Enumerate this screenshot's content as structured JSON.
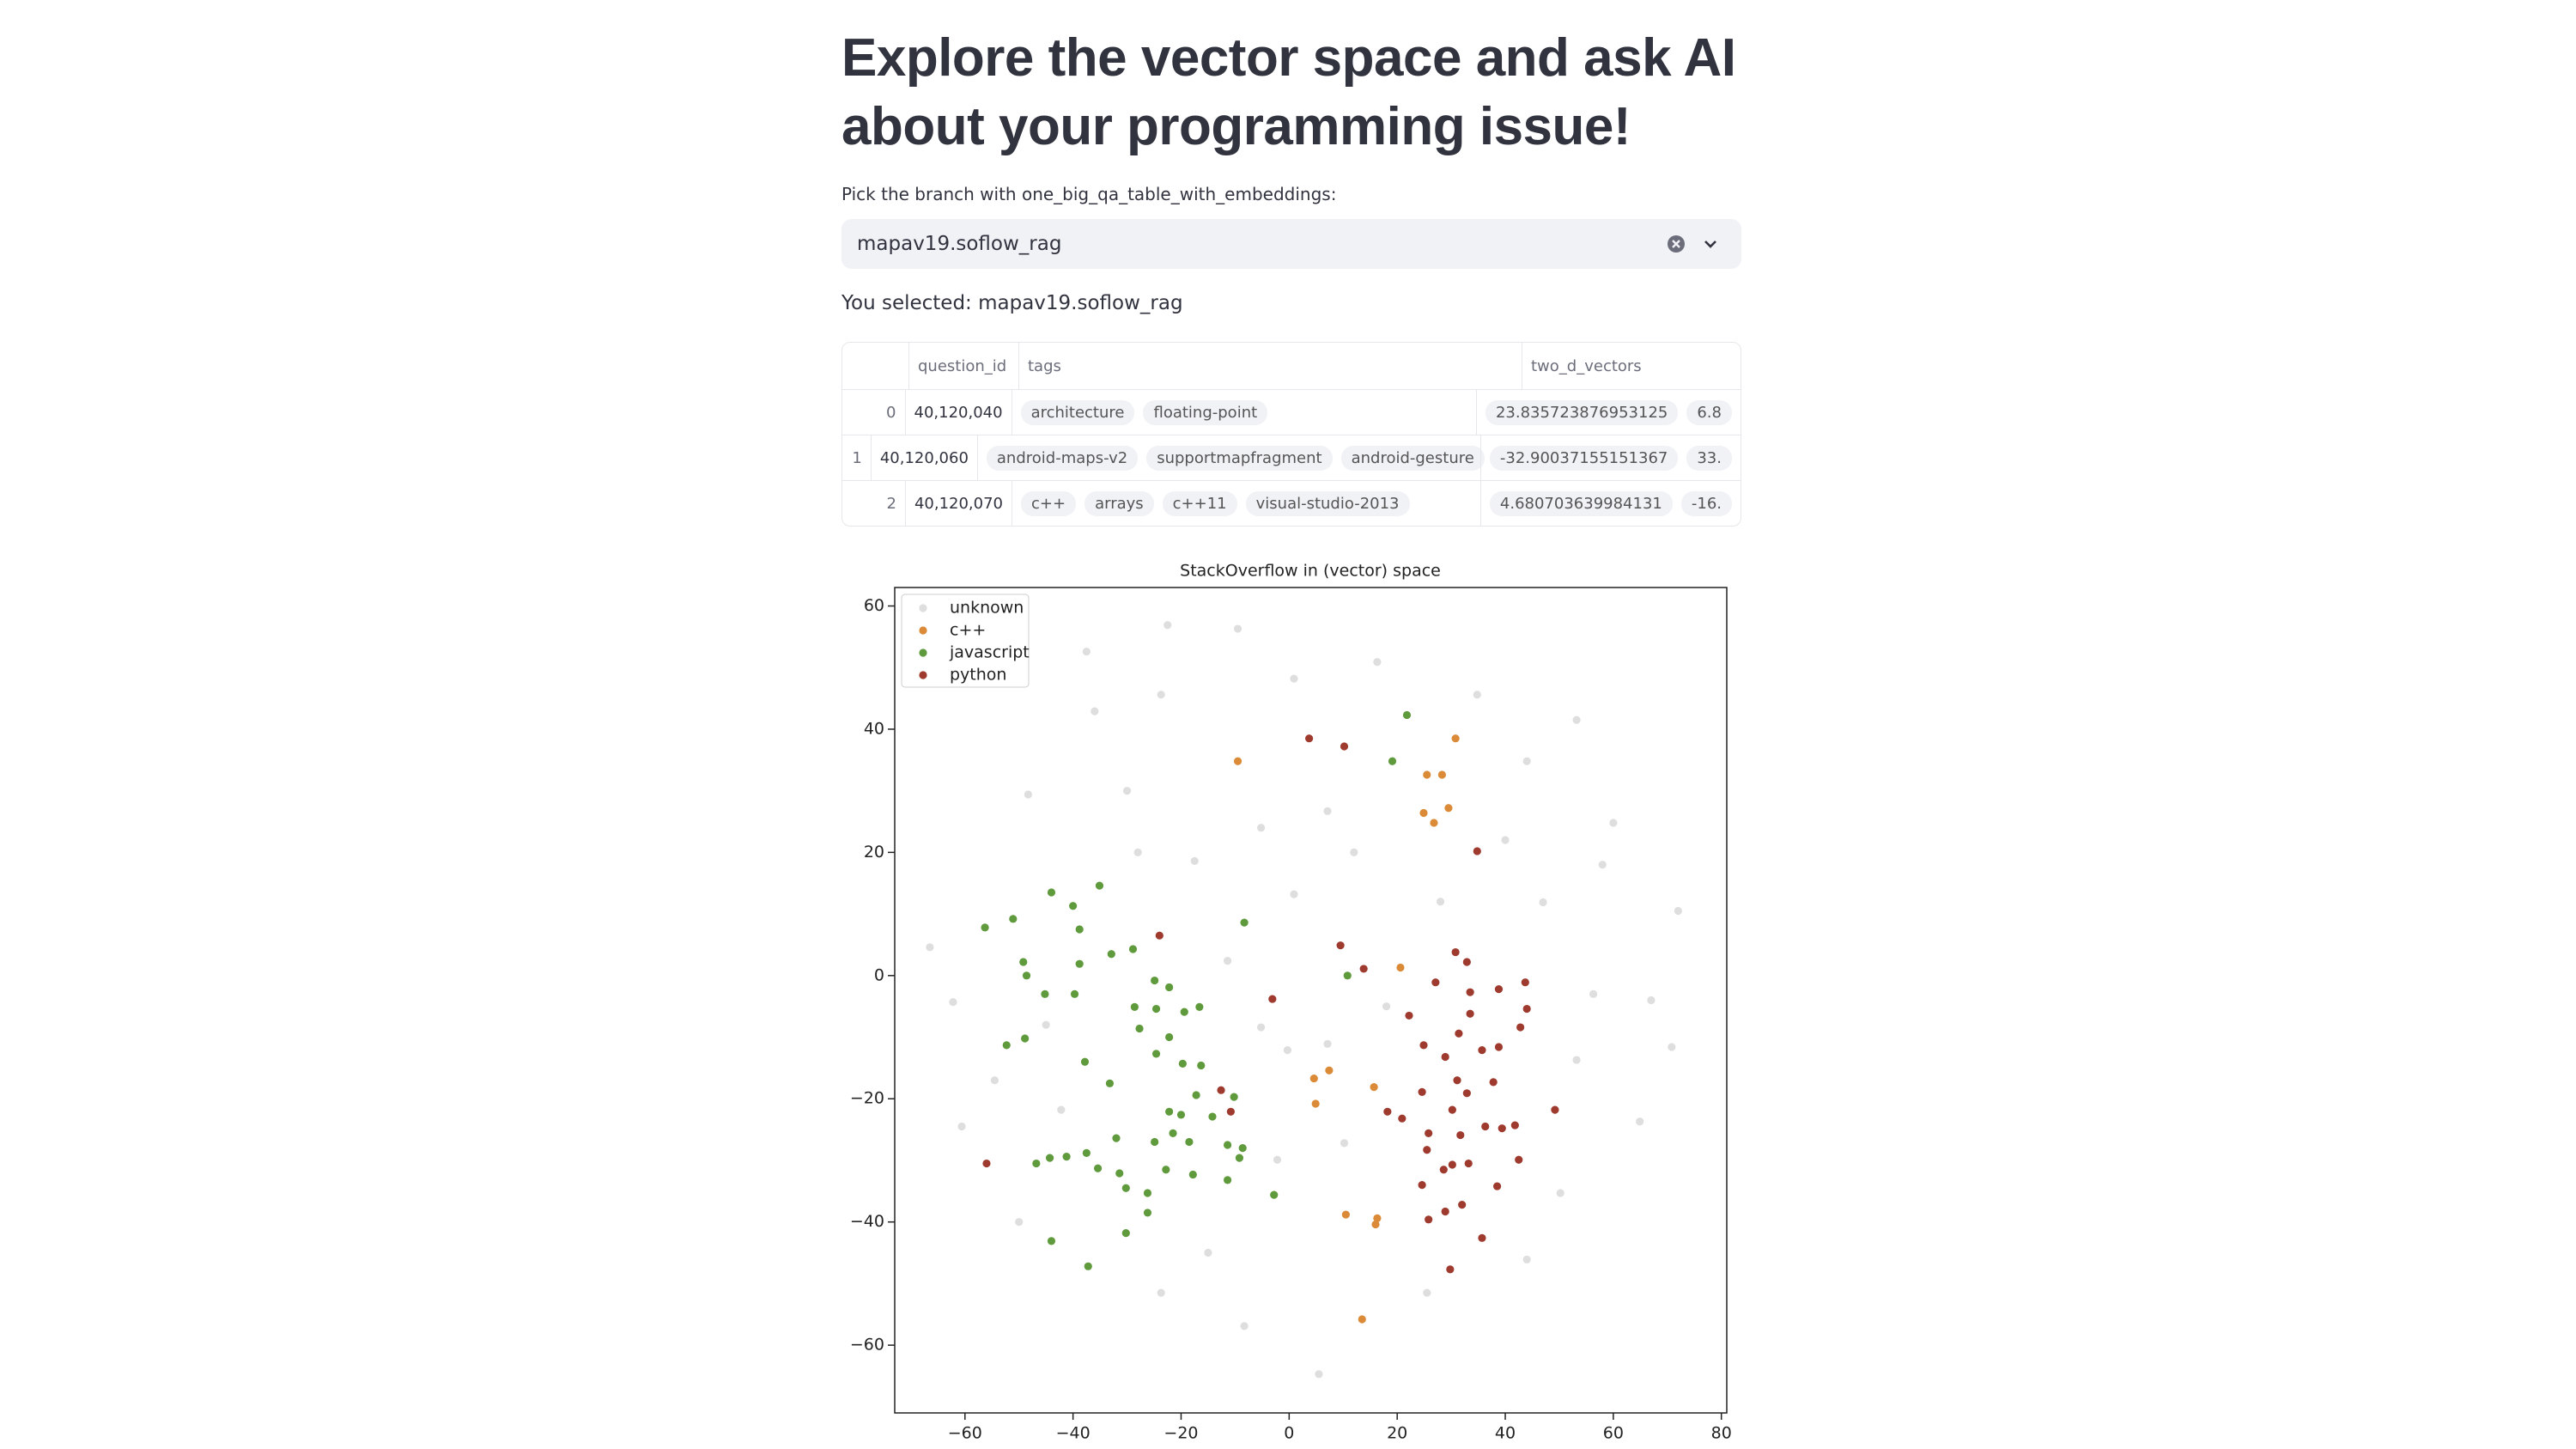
{
  "header": {
    "title": "Explore the vector space and ask AI about your programming issue!"
  },
  "selectbox": {
    "label": "Pick the branch with one_big_qa_table_with_embeddings:",
    "value": "mapav19.soflow_rag"
  },
  "selection_text": "You selected: mapav19.soflow_rag",
  "table": {
    "columns": [
      "question_id",
      "tags",
      "two_d_vectors"
    ],
    "rows": [
      {
        "index": "0",
        "question_id": "40,120,040",
        "tags": [
          "architecture",
          "floating-point"
        ],
        "two_d_vectors": [
          "23.835723876953125",
          "6.8"
        ]
      },
      {
        "index": "1",
        "question_id": "40,120,060",
        "tags": [
          "android-maps-v2",
          "supportmapfragment",
          "android-gesture"
        ],
        "two_d_vectors": [
          "-32.90037155151367",
          "33."
        ]
      },
      {
        "index": "2",
        "question_id": "40,120,070",
        "tags": [
          "c++",
          "arrays",
          "c++11",
          "visual-studio-2013"
        ],
        "two_d_vectors": [
          "4.680703639984131",
          "-16."
        ]
      }
    ]
  },
  "chart_data": {
    "type": "scatter",
    "title": "StackOverflow in (vector) space",
    "xlim": [
      -73,
      81
    ],
    "ylim": [
      -71,
      63
    ],
    "xticks": [
      {
        "value": -60,
        "label": "−60"
      },
      {
        "value": -40,
        "label": "−40"
      },
      {
        "value": -20,
        "label": "−20"
      },
      0,
      20,
      40,
      60,
      80
    ],
    "yticks": [
      {
        "value": -60,
        "label": "−60"
      },
      {
        "value": -40,
        "label": "−40"
      },
      {
        "value": -20,
        "label": "−20"
      },
      0,
      20,
      40,
      60
    ],
    "legend": "upper left",
    "series": [
      {
        "name": "unknown",
        "color": "#dedede",
        "x": [
          53.2,
          -0.3,
          -9.5,
          -22.5,
          -37.5,
          -66.5,
          72,
          5.5,
          67,
          70.8,
          64.9,
          60,
          47,
          -54.5,
          -62.2,
          -8.3,
          -23.7,
          -36,
          -48.3,
          -23.7,
          0.9,
          16.3,
          34.8,
          44,
          7.1,
          -5.2,
          -17.5,
          0.9,
          -11.4,
          -5.2,
          7.1,
          10.2,
          -2.2,
          -42.2,
          -60.6,
          53.2,
          56.3,
          50.2,
          44,
          25.5,
          -30,
          -50,
          12,
          28,
          40,
          -15,
          18,
          -45,
          58,
          -28
        ],
        "y": [
          41.5,
          -12.1,
          56.3,
          56.9,
          52.6,
          4.6,
          10.5,
          -64.7,
          -4,
          -11.6,
          -23.7,
          24.8,
          11.9,
          -17,
          -4.3,
          -56.9,
          -51.5,
          42.9,
          29.4,
          45.6,
          48.2,
          50.9,
          45.6,
          34.8,
          26.7,
          24,
          18.6,
          13.2,
          2.4,
          -8.4,
          -11.1,
          -27.2,
          -29.9,
          -21.8,
          -24.5,
          -13.7,
          -3,
          -35.3,
          -46.1,
          -51.5,
          30,
          -40,
          20,
          12,
          22,
          -45,
          -5,
          -8,
          18,
          20
        ]
      },
      {
        "name": "c++",
        "color": "#db8b37",
        "x": [
          -9.5,
          30.8,
          25.5,
          28.3,
          24.9,
          26.8,
          29.5,
          20.6,
          4.6,
          7.4,
          4.9,
          15.7,
          10.5,
          16.3,
          16.0,
          13.5
        ],
        "y": [
          34.8,
          38.5,
          32.6,
          32.6,
          26.4,
          24.8,
          27.2,
          1.3,
          -16.7,
          -15.4,
          -20.8,
          -18.1,
          -38.8,
          -39.4,
          -40.4,
          -55.8
        ]
      },
      {
        "name": "javascript",
        "color": "#5f9a3c",
        "x": [
          21.8,
          19.1,
          -35.1,
          -44.0,
          -51.1,
          -56.3,
          -40.0,
          -38.8,
          -8.3,
          -28.9,
          -32.9,
          -49.2,
          -48.6,
          -38.8,
          -45.2,
          -39.7,
          -24.9,
          -22.2,
          10.8,
          -28.6,
          -24.6,
          -19.4,
          -16.6,
          -27.7,
          -48.9,
          -52.3,
          -22.2,
          -24.6,
          -37.8,
          -19.7,
          -16.3,
          -33.2,
          -17.2,
          -10.2,
          -22.2,
          -20.0,
          -14.2,
          -32.0,
          -24.9,
          -18.5,
          -21.5,
          -11.4,
          -8.6,
          -9.2,
          -37.5,
          -41.2,
          -44.3,
          -46.8,
          -35.4,
          -31.4,
          -22.8,
          -17.8,
          -11.4,
          -30.2,
          -26.2,
          -2.8,
          -26.2,
          -30.2,
          -44.0,
          -37.2
        ],
        "y": [
          42.3,
          34.8,
          14.6,
          13.5,
          9.2,
          7.8,
          11.3,
          7.5,
          8.6,
          4.3,
          3.5,
          2.2,
          0,
          1.9,
          -3.0,
          -3.0,
          -0.8,
          -1.9,
          0,
          -5.1,
          -5.4,
          -5.9,
          -5.1,
          -8.6,
          -10.2,
          -11.3,
          -10.0,
          -12.7,
          -14.0,
          -14.3,
          -14.6,
          -17.5,
          -19.4,
          -19.7,
          -22.1,
          -22.6,
          -22.9,
          -26.4,
          -27.0,
          -27.0,
          -25.6,
          -27.5,
          -28.0,
          -29.6,
          -28.8,
          -29.4,
          -29.6,
          -30.5,
          -31.3,
          -32.1,
          -31.5,
          -32.3,
          -33.2,
          -34.5,
          -35.3,
          -35.6,
          -38.5,
          -41.8,
          -43.1,
          -47.2
        ]
      },
      {
        "name": "python",
        "color": "#9e3a2e",
        "x": [
          3.7,
          10.2,
          34.8,
          -24.0,
          9.5,
          13.8,
          30.8,
          32.9,
          27.1,
          38.8,
          43.7,
          33.5,
          -3.1,
          22.2,
          44.0,
          33.5,
          42.8,
          31.4,
          38.8,
          28.9,
          35.7,
          24.9,
          31.1,
          37.8,
          -12.6,
          24.6,
          32.9,
          18.2,
          20.9,
          30.2,
          49.2,
          25.8,
          31.7,
          36.3,
          39.4,
          41.8,
          -10.8,
          25.5,
          33.2,
          28.6,
          30.2,
          42.5,
          24.6,
          38.5,
          -56.0,
          32.0,
          28.9,
          25.8,
          35.7,
          29.8
        ],
        "y": [
          38.5,
          37.2,
          20.2,
          6.5,
          4.9,
          1.1,
          3.8,
          2.2,
          -1.1,
          -2.2,
          -1.1,
          -2.7,
          -3.8,
          -6.5,
          -5.4,
          -6.2,
          -8.4,
          -9.4,
          -11.6,
          -13.2,
          -12.1,
          -11.3,
          -17.0,
          -17.3,
          -18.6,
          -18.9,
          -19.1,
          -22.1,
          -23.2,
          -21.8,
          -21.8,
          -25.6,
          -25.9,
          -24.5,
          -24.8,
          -24.3,
          -22.1,
          -28.3,
          -30.5,
          -31.5,
          -30.7,
          -29.9,
          -34.0,
          -34.2,
          -30.5,
          -37.2,
          -38.3,
          -39.6,
          -42.6,
          -47.7
        ]
      }
    ]
  }
}
